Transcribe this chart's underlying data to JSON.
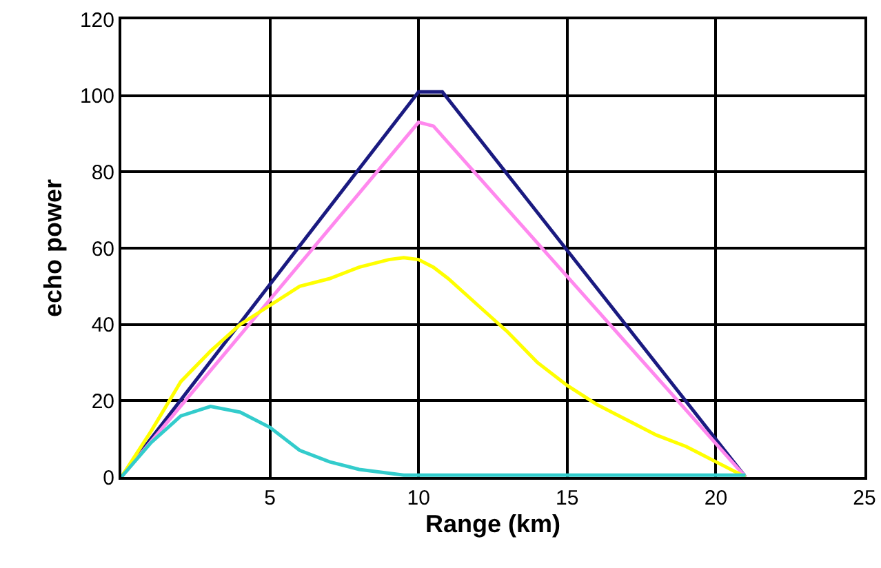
{
  "chart_data": {
    "type": "line",
    "xlabel": "Range (km)",
    "ylabel": "echo power",
    "xlim": [
      0,
      25
    ],
    "ylim": [
      0,
      120
    ],
    "xticks": [
      5,
      10,
      15,
      20,
      25
    ],
    "yticks": [
      0,
      20,
      40,
      60,
      80,
      100,
      120
    ],
    "grid": true,
    "marker": "none",
    "line_style": "solid",
    "series": [
      {
        "color": "#1a1a80",
        "x": [
          0,
          10,
          10.8,
          21
        ],
        "values": [
          0,
          101,
          101,
          0
        ]
      },
      {
        "color": "#ff88ee",
        "x": [
          0,
          10,
          10.5,
          21
        ],
        "values": [
          0,
          93,
          92,
          0
        ]
      },
      {
        "color": "#ffff00",
        "x": [
          0,
          1,
          2,
          3,
          4,
          5,
          6,
          7,
          8,
          9,
          9.5,
          10,
          10.5,
          11,
          12,
          13,
          14,
          15,
          16,
          17,
          18,
          19,
          20,
          21
        ],
        "values": [
          0,
          12,
          25,
          33,
          40,
          45,
          50,
          52,
          55,
          57,
          57.5,
          57,
          55,
          52,
          45,
          38,
          30,
          24,
          19,
          15,
          11,
          8,
          4,
          0
        ]
      },
      {
        "color": "#33cccc",
        "x": [
          0,
          1,
          2,
          3,
          4,
          5,
          6,
          7,
          8,
          9,
          9.5,
          21
        ],
        "values": [
          0,
          9,
          16,
          18.5,
          17,
          13,
          7,
          4,
          2,
          1,
          0.5,
          0.5
        ]
      }
    ]
  }
}
